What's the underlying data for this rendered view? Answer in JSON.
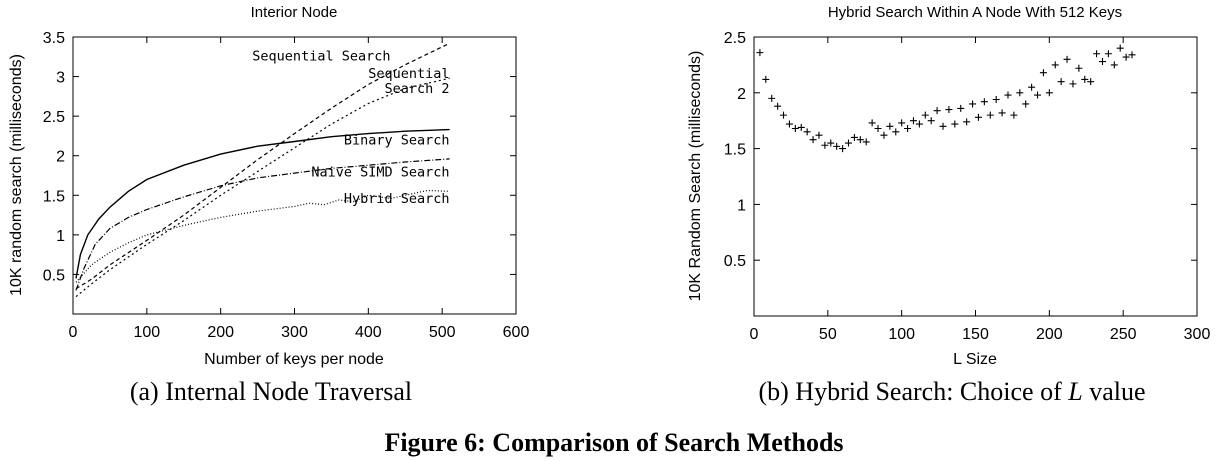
{
  "figure_caption": "Figure 6: Comparison of Search Methods",
  "chart_data": [
    {
      "type": "line",
      "title": "Interior Node",
      "xlabel": "Number of keys per node",
      "ylabel": "10K random search (milliseconds)",
      "xlim": [
        0,
        600
      ],
      "ylim": [
        0,
        3.5
      ],
      "xticks": [
        0,
        100,
        200,
        300,
        400,
        500,
        600
      ],
      "yticks": [
        0.5,
        1,
        1.5,
        2,
        2.5,
        3,
        3.5
      ],
      "xtick_labels": [
        "0",
        "100",
        "200",
        "300",
        "400",
        "500",
        "600"
      ],
      "ytick_labels": [
        "0.5",
        "1",
        "1.5",
        "2",
        "2.5",
        "3",
        "3.5"
      ],
      "grid": false,
      "legend": "inline-labels",
      "caption": "(a) Internal Node Traversal",
      "series": [
        {
          "name": "Sequential Search",
          "label_lines": [
            "Sequential Search"
          ],
          "dash": "4,3",
          "label_at": [
            430,
            3.2
          ],
          "label_anchor": "end",
          "x": [
            4,
            25,
            50,
            100,
            150,
            200,
            250,
            300,
            350,
            400,
            450,
            510
          ],
          "y": [
            0.32,
            0.44,
            0.62,
            0.93,
            1.25,
            1.6,
            1.95,
            2.28,
            2.6,
            2.9,
            3.15,
            3.42
          ]
        },
        {
          "name": "Sequential Search 2",
          "label_lines": [
            "Sequential",
            "Search 2"
          ],
          "dash": "2,3",
          "label_at": [
            510,
            2.98
          ],
          "label_anchor": "end",
          "x": [
            4,
            25,
            50,
            100,
            150,
            200,
            250,
            300,
            350,
            400,
            450,
            510
          ],
          "y": [
            0.22,
            0.38,
            0.56,
            0.88,
            1.18,
            1.5,
            1.8,
            2.1,
            2.4,
            2.66,
            2.85,
            2.98
          ]
        },
        {
          "name": "Binary Search",
          "label_lines": [
            "Binary Search"
          ],
          "dash": "",
          "label_at": [
            510,
            2.14
          ],
          "label_anchor": "end",
          "x": [
            4,
            10,
            20,
            35,
            50,
            75,
            100,
            150,
            200,
            250,
            300,
            350,
            400,
            450,
            510
          ],
          "y": [
            0.45,
            0.75,
            1.0,
            1.2,
            1.35,
            1.55,
            1.7,
            1.88,
            2.02,
            2.12,
            2.18,
            2.24,
            2.28,
            2.31,
            2.33
          ]
        },
        {
          "name": "Naive SIMD Search",
          "label_lines": [
            "Naive SIMD Search"
          ],
          "dash": "6,2,1,2",
          "label_at": [
            510,
            1.74
          ],
          "label_anchor": "end",
          "x": [
            4,
            15,
            30,
            50,
            75,
            100,
            150,
            200,
            250,
            300,
            350,
            400,
            450,
            510
          ],
          "y": [
            0.3,
            0.58,
            0.88,
            1.08,
            1.22,
            1.32,
            1.48,
            1.62,
            1.72,
            1.78,
            1.84,
            1.88,
            1.92,
            1.96
          ]
        },
        {
          "name": "Hybrid Search",
          "label_lines": [
            "Hybrid Search"
          ],
          "dash": "1,2",
          "label_at": [
            510,
            1.4
          ],
          "label_anchor": "end",
          "x": [
            4,
            25,
            50,
            75,
            100,
            150,
            200,
            250,
            300,
            320,
            340,
            360,
            380,
            400,
            430,
            460,
            480,
            510
          ],
          "y": [
            0.4,
            0.62,
            0.78,
            0.9,
            1.0,
            1.12,
            1.22,
            1.3,
            1.36,
            1.4,
            1.38,
            1.44,
            1.42,
            1.5,
            1.46,
            1.52,
            1.56,
            1.55
          ]
        }
      ]
    },
    {
      "type": "scatter",
      "title": "Hybrid Search Within A Node With 512 Keys",
      "xlabel": "L Size",
      "ylabel": "10K Random Search (milliseconds)",
      "xlim": [
        0,
        300
      ],
      "ylim": [
        0,
        2.5
      ],
      "xticks": [
        0,
        50,
        100,
        150,
        200,
        250,
        300
      ],
      "yticks": [
        0.5,
        1,
        1.5,
        2,
        2.5
      ],
      "xtick_labels": [
        "0",
        "50",
        "100",
        "150",
        "200",
        "250",
        "300"
      ],
      "ytick_labels": [
        "0.5",
        "1",
        "1.5",
        "2",
        "2.5"
      ],
      "grid": false,
      "marker": "+",
      "caption_parts": [
        "(b) Hybrid Search: Choice of ",
        "L",
        " value"
      ],
      "x": [
        4,
        8,
        12,
        16,
        20,
        24,
        28,
        32,
        36,
        40,
        44,
        48,
        52,
        56,
        60,
        64,
        68,
        72,
        76,
        80,
        84,
        88,
        92,
        96,
        100,
        104,
        108,
        112,
        116,
        120,
        124,
        128,
        132,
        136,
        140,
        144,
        148,
        152,
        156,
        160,
        164,
        168,
        172,
        176,
        180,
        184,
        188,
        192,
        196,
        200,
        204,
        208,
        212,
        216,
        220,
        224,
        228,
        232,
        236,
        240,
        244,
        248,
        252,
        256
      ],
      "y": [
        2.36,
        2.12,
        1.95,
        1.88,
        1.8,
        1.72,
        1.68,
        1.69,
        1.65,
        1.58,
        1.62,
        1.53,
        1.55,
        1.52,
        1.5,
        1.55,
        1.6,
        1.58,
        1.56,
        1.73,
        1.68,
        1.62,
        1.7,
        1.65,
        1.73,
        1.68,
        1.75,
        1.72,
        1.8,
        1.75,
        1.84,
        1.7,
        1.85,
        1.72,
        1.86,
        1.74,
        1.9,
        1.78,
        1.92,
        1.8,
        1.94,
        1.82,
        1.98,
        1.8,
        2.0,
        1.9,
        2.05,
        1.98,
        2.18,
        2.0,
        2.25,
        2.1,
        2.3,
        2.08,
        2.22,
        2.12,
        2.1,
        2.35,
        2.28,
        2.35,
        2.25,
        2.4,
        2.32,
        2.34
      ]
    }
  ]
}
